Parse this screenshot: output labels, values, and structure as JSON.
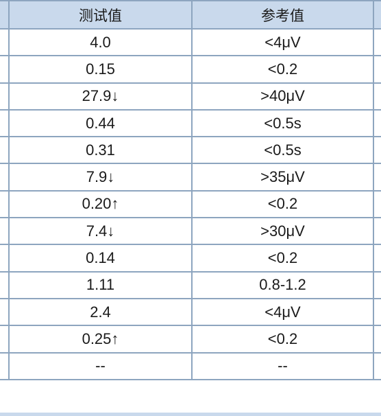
{
  "header": {
    "test_value": "测试值",
    "reference_value": "参考值"
  },
  "rows": [
    {
      "test": "4.0",
      "reference": "<4μV"
    },
    {
      "test": "0.15",
      "reference": "<0.2"
    },
    {
      "test": "27.9↓",
      "reference": ">40μV"
    },
    {
      "test": "0.44",
      "reference": "<0.5s"
    },
    {
      "test": "0.31",
      "reference": "<0.5s"
    },
    {
      "test": "7.9↓",
      "reference": ">35μV"
    },
    {
      "test": "0.20↑",
      "reference": "<0.2"
    },
    {
      "test": "7.4↓",
      "reference": ">30μV"
    },
    {
      "test": "0.14",
      "reference": "<0.2"
    },
    {
      "test": "1.11",
      "reference": "0.8-1.2"
    },
    {
      "test": "2.4",
      "reference": "<4μV"
    },
    {
      "test": "0.25↑",
      "reference": "<0.2"
    },
    {
      "test": "--",
      "reference": "--"
    }
  ],
  "colors": {
    "header_bg": "#c9d9ec",
    "border": "#8da5bf",
    "text": "#1a1a1a"
  }
}
